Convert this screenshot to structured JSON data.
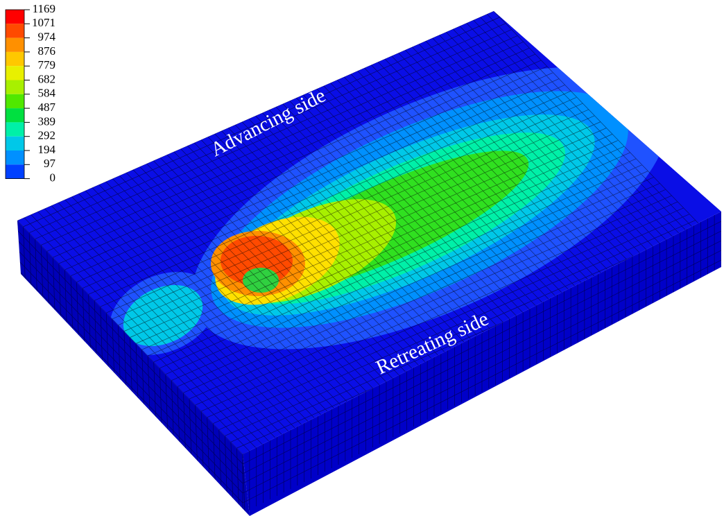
{
  "legend": {
    "ticks": [
      1169,
      1071,
      974,
      876,
      779,
      682,
      584,
      487,
      389,
      292,
      194,
      97,
      0
    ],
    "colors": [
      "#ff0000",
      "#ff4a00",
      "#ff9000",
      "#ffc800",
      "#e8f000",
      "#a8f000",
      "#50e800",
      "#00e040",
      "#00f0a8",
      "#00c8e8",
      "#0090ff",
      "#0040ff"
    ]
  },
  "annotations": {
    "advancing": "Advancing side",
    "retreating": "Retreating side"
  }
}
